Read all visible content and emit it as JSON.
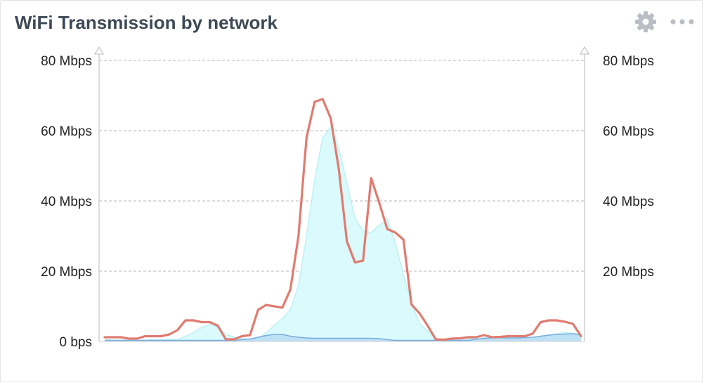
{
  "widget": {
    "title": "WiFi Transmission by network",
    "settings_icon": "gear-icon",
    "menu_icon": "more-dots-icon"
  },
  "chart_data": {
    "type": "area",
    "title": "WiFi Transmission by network",
    "ylim": [
      0,
      80
    ],
    "yticks": [
      {
        "value": 0,
        "label": "0 bps"
      },
      {
        "value": 20,
        "label": "20 Mbps"
      },
      {
        "value": 40,
        "label": "40 Mbps"
      },
      {
        "value": 60,
        "label": "60 Mbps"
      },
      {
        "value": 80,
        "label": "80 Mbps"
      }
    ],
    "right_yticks": [
      {
        "value": 20,
        "label": "20 Mbps"
      },
      {
        "value": 40,
        "label": "40 Mbps"
      },
      {
        "value": 60,
        "label": "60 Mbps"
      },
      {
        "value": 80,
        "label": "80 Mbps"
      }
    ],
    "grid": true,
    "colors": {
      "red": "#e07b70",
      "cyan": "#dafafc",
      "cyan_edge": "#bdf1f5",
      "blue": "#7aaede",
      "blue_fill": "#b8dcf4"
    },
    "series": [
      {
        "style": "line",
        "color": "#e07b70",
        "values": [
          1.2,
          1.2,
          1.2,
          0.8,
          0.8,
          1.5,
          1.5,
          1.5,
          2,
          3.2,
          6,
          6,
          5.5,
          5.5,
          4.5,
          0.6,
          0.6,
          1.5,
          1.8,
          9,
          10.4,
          10,
          9.6,
          14.8,
          30,
          58,
          68.2,
          69,
          63.5,
          49,
          28.5,
          22.5,
          23,
          46.5,
          39.5,
          32,
          31,
          29,
          10.5,
          8,
          4.5,
          0.6,
          0.5,
          0.8,
          0.9,
          1.2,
          1.2,
          1.8,
          1.2,
          1.3,
          1.5,
          1.5,
          1.5,
          2.2,
          5.5,
          6,
          6,
          5.6,
          5,
          1.5
        ]
      },
      {
        "style": "area",
        "color": "#bdf1f5",
        "values": [
          0.5,
          0.4,
          0.3,
          0.3,
          0.3,
          0.4,
          0.5,
          0.5,
          0.6,
          0.5,
          1.5,
          2.5,
          4,
          4.8,
          4.2,
          2,
          1.3,
          0.8,
          0.5,
          0.8,
          2.5,
          4.5,
          6.5,
          9,
          16,
          30,
          46,
          58,
          61,
          55,
          45,
          35,
          31.5,
          31,
          33,
          35,
          28,
          19,
          11,
          5,
          3,
          0.8,
          0.4,
          0.4,
          0.6,
          0.8,
          0.8,
          1,
          1,
          0.8,
          0.7,
          0.8,
          1,
          1,
          1.2,
          1.8,
          2.2,
          2.6,
          2.3,
          2
        ]
      },
      {
        "style": "area",
        "color": "#7aaede",
        "values": [
          0.3,
          0.3,
          0.3,
          0.3,
          0.3,
          0.3,
          0.3,
          0.3,
          0.3,
          0.3,
          0.3,
          0.3,
          0.3,
          0.3,
          0.3,
          0.3,
          0.3,
          0.5,
          0.7,
          1.2,
          1.7,
          2,
          2,
          1.5,
          1.2,
          1,
          0.9,
          0.9,
          0.9,
          0.9,
          0.9,
          0.9,
          0.9,
          0.9,
          0.8,
          0.5,
          0.3,
          0.3,
          0.3,
          0.3,
          0.3,
          0.3,
          0.3,
          0.3,
          0.3,
          0.3,
          0.6,
          0.9,
          1,
          1.1,
          1,
          1,
          1.1,
          1.2,
          1.5,
          1.8,
          2,
          2.1,
          2.2,
          1.8
        ]
      }
    ]
  }
}
